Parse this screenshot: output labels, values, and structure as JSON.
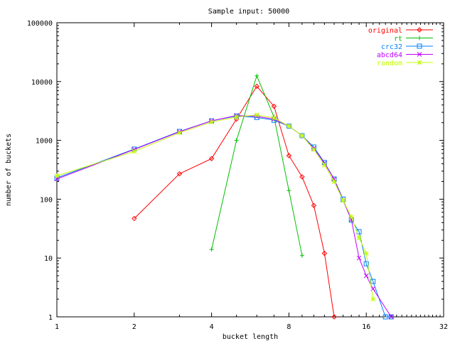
{
  "chart_data": {
    "type": "line",
    "title": "Sample input: 50000",
    "xlabel": "bucket length",
    "ylabel": "number of buckets",
    "x_scale": "log2",
    "y_scale": "log10",
    "xlim": [
      1,
      32
    ],
    "ylim": [
      1,
      100000
    ],
    "x_ticks": [
      1,
      2,
      4,
      8,
      16,
      32
    ],
    "y_ticks": [
      1,
      10,
      100,
      1000,
      10000,
      100000
    ],
    "legend_position": "top-right",
    "series": [
      {
        "name": "original",
        "color": "#ff0000",
        "marker": "diamond",
        "points": [
          [
            2,
            47
          ],
          [
            3,
            270
          ],
          [
            4,
            490
          ],
          [
            5,
            2300
          ],
          [
            6,
            8300
          ],
          [
            7,
            3800
          ],
          [
            8,
            550
          ],
          [
            9,
            240
          ],
          [
            10,
            78
          ],
          [
            11,
            12
          ],
          [
            12,
            1
          ]
        ]
      },
      {
        "name": "rt",
        "color": "#00c000",
        "marker": "plus",
        "points": [
          [
            4,
            14
          ],
          [
            5,
            1000
          ],
          [
            6,
            12500
          ],
          [
            7,
            2500
          ],
          [
            8,
            140
          ],
          [
            9,
            11
          ]
        ]
      },
      {
        "name": "crc32",
        "color": "#0080ff",
        "marker": "square",
        "points": [
          [
            1,
            230
          ],
          [
            2,
            710
          ],
          [
            3,
            1420
          ],
          [
            4,
            2150
          ],
          [
            5,
            2600
          ],
          [
            6,
            2450
          ],
          [
            7,
            2200
          ],
          [
            8,
            1750
          ],
          [
            9,
            1200
          ],
          [
            10,
            770
          ],
          [
            11,
            420
          ],
          [
            12,
            220
          ],
          [
            13,
            100
          ],
          [
            14,
            44
          ],
          [
            15,
            28
          ],
          [
            16,
            8
          ],
          [
            17,
            4
          ],
          [
            19,
            1
          ],
          [
            20,
            1
          ]
        ]
      },
      {
        "name": "abcd64",
        "color": "#c000ff",
        "marker": "x",
        "points": [
          [
            1,
            220
          ],
          [
            2,
            700
          ],
          [
            3,
            1400
          ],
          [
            4,
            2150
          ],
          [
            5,
            2650
          ],
          [
            6,
            2550
          ],
          [
            7,
            2300
          ],
          [
            8,
            1750
          ],
          [
            9,
            1200
          ],
          [
            10,
            730
          ],
          [
            11,
            410
          ],
          [
            12,
            220
          ],
          [
            13,
            95
          ],
          [
            14,
            45
          ],
          [
            15,
            10
          ],
          [
            16,
            5
          ],
          [
            17,
            3
          ],
          [
            20,
            1
          ]
        ]
      },
      {
        "name": "random",
        "color": "#c0ff00",
        "marker": "star",
        "points": [
          [
            1,
            250
          ],
          [
            2,
            650
          ],
          [
            3,
            1350
          ],
          [
            4,
            2050
          ],
          [
            5,
            2500
          ],
          [
            6,
            2700
          ],
          [
            7,
            2400
          ],
          [
            8,
            1750
          ],
          [
            9,
            1200
          ],
          [
            10,
            700
          ],
          [
            11,
            380
          ],
          [
            12,
            200
          ],
          [
            13,
            95
          ],
          [
            14,
            50
          ],
          [
            15,
            22
          ],
          [
            16,
            12
          ],
          [
            17,
            2
          ]
        ]
      }
    ]
  }
}
